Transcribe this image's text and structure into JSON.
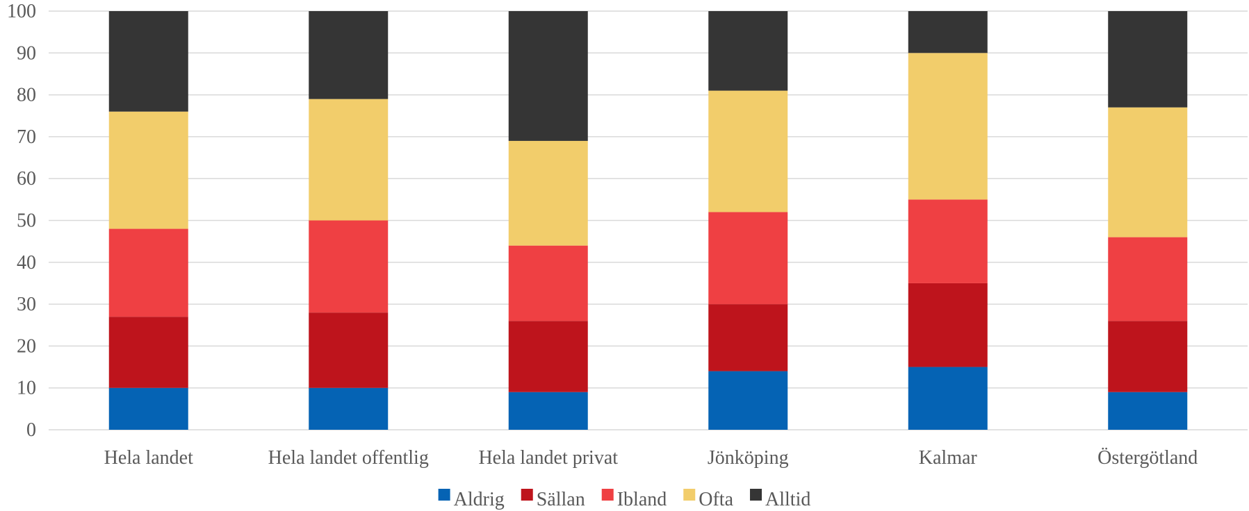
{
  "chart_data": {
    "type": "bar",
    "stacked": true,
    "title": "",
    "xlabel": "",
    "ylabel": "",
    "ylim": [
      0,
      100
    ],
    "yticks": [
      0,
      10,
      20,
      30,
      40,
      50,
      60,
      70,
      80,
      90,
      100
    ],
    "grid": true,
    "legend_position": "bottom",
    "categories": [
      "Hela landet",
      "Hela landet offentlig",
      "Hela landet privat",
      "Jönköping",
      "Kalmar",
      "Östergötland"
    ],
    "series": [
      {
        "name": "Aldrig",
        "color": "#0563b4",
        "values": [
          10,
          10,
          9,
          14,
          15,
          9
        ]
      },
      {
        "name": "Sällan",
        "color": "#be141c",
        "values": [
          17,
          18,
          17,
          16,
          20,
          17
        ]
      },
      {
        "name": "Ibland",
        "color": "#ef4043",
        "values": [
          21,
          22,
          18,
          22,
          20,
          20
        ]
      },
      {
        "name": "Ofta",
        "color": "#f2cd6b",
        "values": [
          28,
          29,
          25,
          29,
          35,
          31
        ]
      },
      {
        "name": "Alltid",
        "color": "#353535",
        "values": [
          24,
          21,
          31,
          19,
          10,
          23
        ]
      }
    ]
  }
}
